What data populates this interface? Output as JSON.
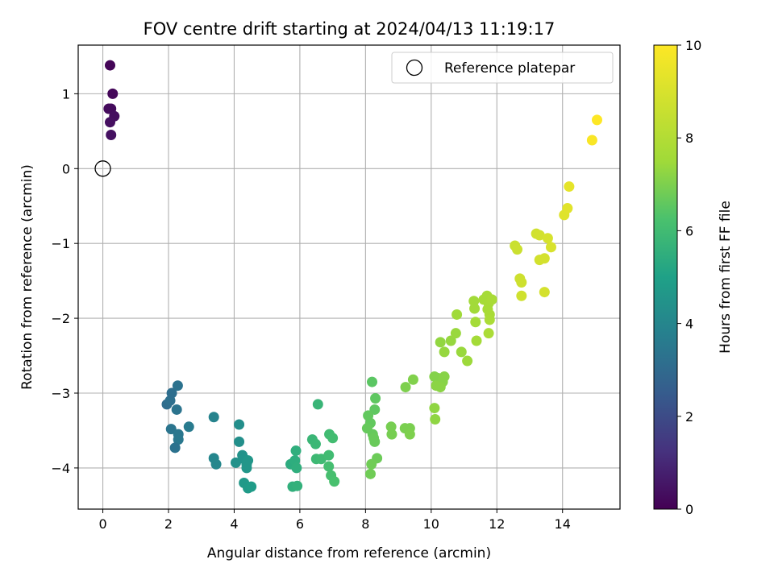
{
  "chart_data": {
    "type": "scatter",
    "title": "FOV centre drift starting at 2024/04/13 11:19:17",
    "xlabel": "Angular distance from reference (arcmin)",
    "ylabel": "Rotation from reference (arcmin)",
    "xlim": [
      -0.75,
      15.75
    ],
    "ylim": [
      -4.55,
      1.65
    ],
    "xticks": [
      0,
      2,
      4,
      6,
      8,
      10,
      12,
      14
    ],
    "yticks": [
      -4,
      -3,
      -2,
      -1,
      0,
      1
    ],
    "grid": true,
    "legend": {
      "position": "top-right",
      "entries": [
        "Reference platepar"
      ]
    },
    "reference_point": {
      "x": 0,
      "y": 0,
      "label": "Reference platepar"
    },
    "colorbar": {
      "label": "Hours from first FF file",
      "min": 0,
      "max": 10,
      "ticks": [
        0,
        2,
        4,
        6,
        8,
        10
      ],
      "colormap": "viridis"
    },
    "points": [
      {
        "x": 0.22,
        "y": 1.38,
        "c": 0.1
      },
      {
        "x": 0.3,
        "y": 1.0,
        "c": 0.15
      },
      {
        "x": 0.18,
        "y": 0.8,
        "c": 0.2
      },
      {
        "x": 0.25,
        "y": 0.8,
        "c": 0.25
      },
      {
        "x": 0.35,
        "y": 0.7,
        "c": 0.3
      },
      {
        "x": 0.22,
        "y": 0.62,
        "c": 0.35
      },
      {
        "x": 0.25,
        "y": 0.45,
        "c": 0.4
      },
      {
        "x": 1.95,
        "y": -3.15,
        "c": 3.1
      },
      {
        "x": 2.05,
        "y": -3.1,
        "c": 3.2
      },
      {
        "x": 2.1,
        "y": -3.0,
        "c": 3.15
      },
      {
        "x": 2.28,
        "y": -2.9,
        "c": 3.3
      },
      {
        "x": 2.25,
        "y": -3.22,
        "c": 3.35
      },
      {
        "x": 2.08,
        "y": -3.48,
        "c": 3.4
      },
      {
        "x": 2.3,
        "y": -3.55,
        "c": 3.45
      },
      {
        "x": 2.3,
        "y": -3.62,
        "c": 3.5
      },
      {
        "x": 2.2,
        "y": -3.73,
        "c": 3.3
      },
      {
        "x": 2.62,
        "y": -3.45,
        "c": 3.6
      },
      {
        "x": 3.38,
        "y": -3.32,
        "c": 3.9
      },
      {
        "x": 3.38,
        "y": -3.87,
        "c": 4.0
      },
      {
        "x": 3.45,
        "y": -3.95,
        "c": 4.05
      },
      {
        "x": 4.15,
        "y": -3.42,
        "c": 4.3
      },
      {
        "x": 4.15,
        "y": -3.65,
        "c": 4.35
      },
      {
        "x": 4.05,
        "y": -3.93,
        "c": 4.4
      },
      {
        "x": 4.25,
        "y": -3.83,
        "c": 4.45
      },
      {
        "x": 4.3,
        "y": -3.88,
        "c": 4.5
      },
      {
        "x": 4.38,
        "y": -3.95,
        "c": 4.55
      },
      {
        "x": 4.42,
        "y": -3.9,
        "c": 4.6
      },
      {
        "x": 4.38,
        "y": -4.0,
        "c": 4.6
      },
      {
        "x": 4.3,
        "y": -4.2,
        "c": 4.7
      },
      {
        "x": 4.42,
        "y": -4.27,
        "c": 4.75
      },
      {
        "x": 4.52,
        "y": -4.25,
        "c": 4.8
      },
      {
        "x": 5.72,
        "y": -3.95,
        "c": 5.4
      },
      {
        "x": 5.85,
        "y": -3.9,
        "c": 5.45
      },
      {
        "x": 5.88,
        "y": -3.77,
        "c": 5.5
      },
      {
        "x": 5.9,
        "y": -4.0,
        "c": 5.5
      },
      {
        "x": 5.78,
        "y": -4.25,
        "c": 5.55
      },
      {
        "x": 5.92,
        "y": -4.24,
        "c": 5.6
      },
      {
        "x": 6.55,
        "y": -3.15,
        "c": 5.75
      },
      {
        "x": 6.38,
        "y": -3.62,
        "c": 5.8
      },
      {
        "x": 6.48,
        "y": -3.68,
        "c": 5.85
      },
      {
        "x": 6.5,
        "y": -3.88,
        "c": 5.9
      },
      {
        "x": 6.65,
        "y": -3.88,
        "c": 5.95
      },
      {
        "x": 6.88,
        "y": -3.83,
        "c": 6.0
      },
      {
        "x": 6.9,
        "y": -3.55,
        "c": 6.0
      },
      {
        "x": 7.0,
        "y": -3.6,
        "c": 6.05
      },
      {
        "x": 6.88,
        "y": -3.98,
        "c": 6.1
      },
      {
        "x": 6.95,
        "y": -4.1,
        "c": 6.15
      },
      {
        "x": 7.05,
        "y": -4.18,
        "c": 6.2
      },
      {
        "x": 8.2,
        "y": -2.85,
        "c": 6.5
      },
      {
        "x": 8.3,
        "y": -3.07,
        "c": 6.55
      },
      {
        "x": 8.28,
        "y": -3.22,
        "c": 6.55
      },
      {
        "x": 8.08,
        "y": -3.3,
        "c": 6.6
      },
      {
        "x": 8.15,
        "y": -3.4,
        "c": 6.6
      },
      {
        "x": 8.05,
        "y": -3.47,
        "c": 6.65
      },
      {
        "x": 8.22,
        "y": -3.55,
        "c": 6.65
      },
      {
        "x": 8.25,
        "y": -3.6,
        "c": 6.7
      },
      {
        "x": 8.28,
        "y": -3.65,
        "c": 6.7
      },
      {
        "x": 8.35,
        "y": -3.87,
        "c": 6.75
      },
      {
        "x": 8.18,
        "y": -3.95,
        "c": 6.8
      },
      {
        "x": 8.15,
        "y": -4.08,
        "c": 6.8
      },
      {
        "x": 8.78,
        "y": -3.45,
        "c": 6.9
      },
      {
        "x": 8.8,
        "y": -3.55,
        "c": 6.9
      },
      {
        "x": 9.2,
        "y": -3.47,
        "c": 6.95
      },
      {
        "x": 9.35,
        "y": -3.47,
        "c": 6.95
      },
      {
        "x": 9.35,
        "y": -3.55,
        "c": 7.0
      },
      {
        "x": 9.22,
        "y": -2.92,
        "c": 7.0
      },
      {
        "x": 9.45,
        "y": -2.82,
        "c": 7.05
      },
      {
        "x": 10.1,
        "y": -2.78,
        "c": 7.1
      },
      {
        "x": 10.2,
        "y": -2.8,
        "c": 7.1
      },
      {
        "x": 10.4,
        "y": -2.78,
        "c": 7.15
      },
      {
        "x": 10.35,
        "y": -2.85,
        "c": 7.15
      },
      {
        "x": 10.15,
        "y": -2.9,
        "c": 7.2
      },
      {
        "x": 10.28,
        "y": -2.92,
        "c": 7.2
      },
      {
        "x": 10.1,
        "y": -3.2,
        "c": 7.25
      },
      {
        "x": 10.12,
        "y": -3.35,
        "c": 7.25
      },
      {
        "x": 10.28,
        "y": -2.32,
        "c": 7.3
      },
      {
        "x": 10.4,
        "y": -2.45,
        "c": 7.35
      },
      {
        "x": 10.6,
        "y": -2.3,
        "c": 7.35
      },
      {
        "x": 10.75,
        "y": -2.2,
        "c": 7.4
      },
      {
        "x": 10.92,
        "y": -2.45,
        "c": 7.4
      },
      {
        "x": 11.1,
        "y": -2.57,
        "c": 7.45
      },
      {
        "x": 10.78,
        "y": -1.95,
        "c": 7.5
      },
      {
        "x": 11.3,
        "y": -1.77,
        "c": 7.55
      },
      {
        "x": 11.32,
        "y": -1.87,
        "c": 7.55
      },
      {
        "x": 11.35,
        "y": -2.05,
        "c": 7.6
      },
      {
        "x": 11.38,
        "y": -2.3,
        "c": 7.6
      },
      {
        "x": 11.6,
        "y": -1.75,
        "c": 7.65
      },
      {
        "x": 11.7,
        "y": -1.7,
        "c": 7.65
      },
      {
        "x": 11.75,
        "y": -1.8,
        "c": 7.7
      },
      {
        "x": 11.72,
        "y": -1.88,
        "c": 7.7
      },
      {
        "x": 11.85,
        "y": -1.75,
        "c": 7.75
      },
      {
        "x": 11.78,
        "y": -1.95,
        "c": 7.75
      },
      {
        "x": 11.78,
        "y": -2.02,
        "c": 7.8
      },
      {
        "x": 11.75,
        "y": -2.2,
        "c": 7.8
      },
      {
        "x": 12.55,
        "y": -1.03,
        "c": 8.6
      },
      {
        "x": 12.62,
        "y": -1.08,
        "c": 8.65
      },
      {
        "x": 12.7,
        "y": -1.47,
        "c": 8.7
      },
      {
        "x": 12.75,
        "y": -1.52,
        "c": 8.7
      },
      {
        "x": 12.75,
        "y": -1.7,
        "c": 8.75
      },
      {
        "x": 13.2,
        "y": -0.87,
        "c": 8.8
      },
      {
        "x": 13.3,
        "y": -0.89,
        "c": 8.85
      },
      {
        "x": 13.3,
        "y": -1.22,
        "c": 8.85
      },
      {
        "x": 13.45,
        "y": -1.2,
        "c": 8.9
      },
      {
        "x": 13.45,
        "y": -1.65,
        "c": 8.9
      },
      {
        "x": 13.55,
        "y": -0.93,
        "c": 8.95
      },
      {
        "x": 13.65,
        "y": -1.05,
        "c": 9.0
      },
      {
        "x": 14.05,
        "y": -0.62,
        "c": 9.2
      },
      {
        "x": 14.15,
        "y": -0.53,
        "c": 9.25
      },
      {
        "x": 14.2,
        "y": -0.24,
        "c": 9.35
      },
      {
        "x": 14.9,
        "y": 0.38,
        "c": 9.9
      },
      {
        "x": 15.05,
        "y": 0.65,
        "c": 10.0
      }
    ]
  }
}
